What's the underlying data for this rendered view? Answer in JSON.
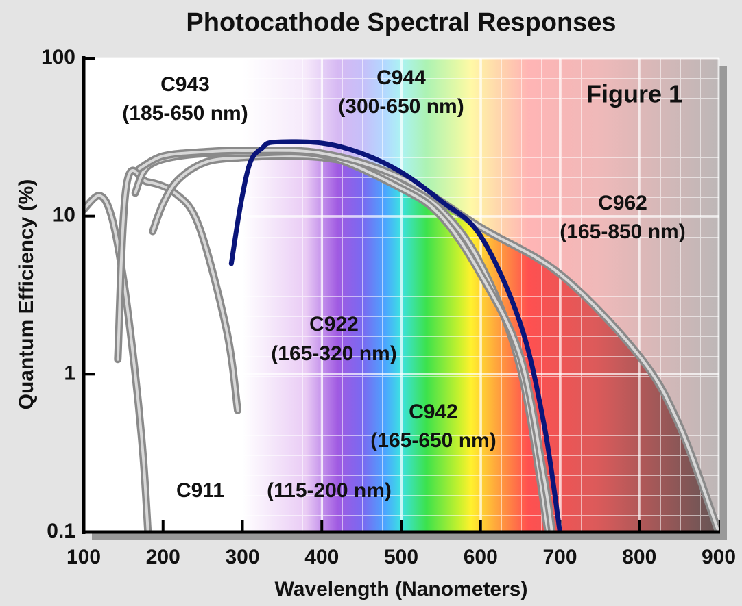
{
  "chart_data": {
    "type": "line",
    "title": "Photocathode Spectral Responses",
    "xlabel": "Wavelength (Nanometers)",
    "ylabel": "Quantum Efficiency (%)",
    "annotation": "Figure 1",
    "xlim": [
      100,
      900
    ],
    "xticks": [
      100,
      200,
      300,
      400,
      500,
      600,
      700,
      800,
      900
    ],
    "ylim": [
      0.1,
      100
    ],
    "yticks": [
      0.1,
      1,
      10,
      100
    ],
    "log_y": true,
    "series": [
      {
        "name": "C911",
        "range": "(115-200 nm)",
        "color": "#8a8a8a",
        "x": [
          100,
          120,
          135,
          150,
          165,
          175,
          181
        ],
        "values": [
          11,
          13.5,
          10,
          4,
          1,
          0.3,
          0.1
        ]
      },
      {
        "name": "C922",
        "range": "(165-320 nm)",
        "color": "#8a8a8a",
        "x": [
          143,
          154,
          180,
          215,
          245,
          280,
          294
        ],
        "values": [
          1.24,
          15.8,
          16.5,
          14,
          8.7,
          1.9,
          0.59
        ]
      },
      {
        "name": "C943",
        "range": "(185-650 nm)",
        "color": "#8a8a8a",
        "x": [
          187,
          200,
          219,
          254,
          300,
          350,
          400,
          450,
          500,
          550,
          600,
          650,
          685
        ],
        "values": [
          8,
          12,
          17,
          22,
          23.5,
          24,
          23.5,
          21,
          16,
          11,
          5,
          1.1,
          0.1
        ]
      },
      {
        "name": "C942",
        "range": "(165-650 nm)",
        "color": "#8a8a8a",
        "x": [
          165,
          175,
          190,
          220,
          260,
          300,
          400,
          500,
          550,
          600,
          650,
          680,
          690
        ],
        "values": [
          14,
          19,
          22,
          24,
          25,
          25,
          24.5,
          15,
          10,
          4.3,
          1.3,
          0.22,
          0.1
        ]
      },
      {
        "name": "C962",
        "range": "(165-850 nm)",
        "color": "#8a8a8a",
        "x": [
          170,
          200,
          250,
          300,
          400,
          500,
          600,
          700,
          800,
          850,
          900
        ],
        "values": [
          20,
          24,
          25.5,
          26,
          25,
          17.5,
          8.5,
          4.3,
          1.3,
          0.48,
          0.1
        ]
      },
      {
        "name": "C944",
        "range": "(300-650 nm)",
        "color": "#0a157a",
        "x": [
          286,
          298,
          310,
          325,
          340,
          400,
          450,
          500,
          550,
          600,
          650,
          680,
          700
        ],
        "values": [
          5,
          12,
          22,
          27,
          29.4,
          29,
          25,
          19,
          12.5,
          7.5,
          2.1,
          0.48,
          0.1
        ]
      }
    ]
  }
}
